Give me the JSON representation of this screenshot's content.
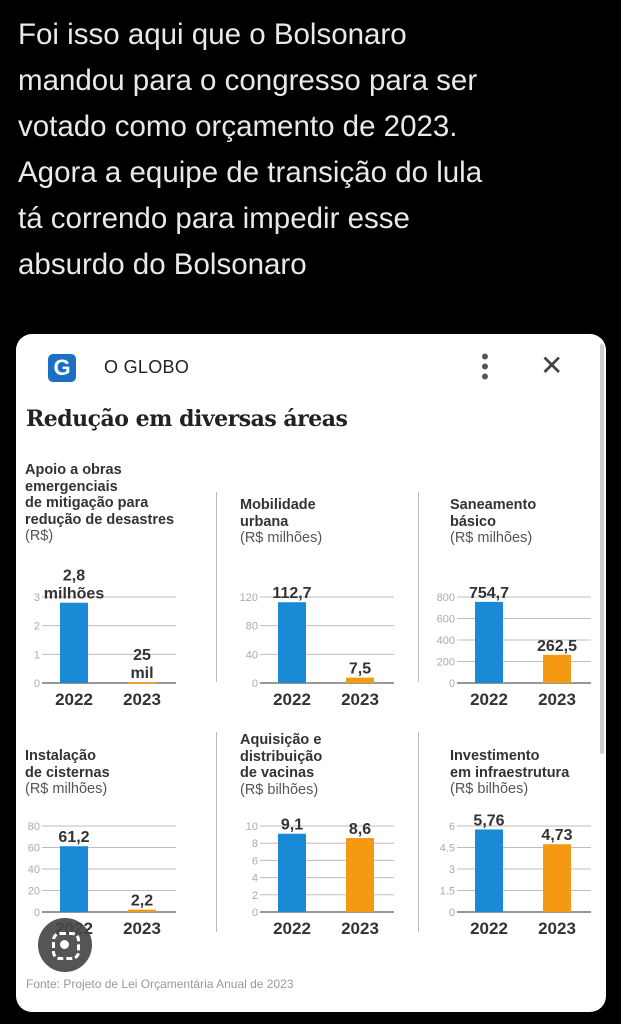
{
  "tweet": {
    "lines": [
      "Foi isso aqui que o Bolsonaro",
      "mandou para o congresso para ser",
      "votado como orçamento de 2023.",
      "Agora a equipe de transição do lula",
      "tá correndo para impedir esse",
      "absurdo do Bolsonaro"
    ]
  },
  "card": {
    "logo_letter": "G",
    "source_name": "O GLOBO",
    "menu_icon": "more-vertical-icon",
    "close_icon": "close-icon",
    "lens_icon": "google-lens-icon"
  },
  "colors": {
    "bar_2022": "#1a8ad6",
    "bar_2023": "#f39a12",
    "grid": "#bdbdbd"
  },
  "chart_data": {
    "title": "Redução em diversas áreas",
    "source": "Fonte: Projeto de Lei Orçamentária Anual de 2023",
    "charts": [
      {
        "type": "bar",
        "title_lines": [
          "Apoio a obras",
          "emergenciais",
          "de mitigação para",
          "redução de desastres"
        ],
        "unit": "(R$)",
        "categories": [
          "2022",
          "2023"
        ],
        "values": [
          2.8,
          0.025
        ],
        "value_labels": [
          [
            "2,8",
            "milhões"
          ],
          [
            "25",
            "mil"
          ]
        ],
        "yticks": [
          "0",
          "1",
          "2",
          "3"
        ],
        "ylim": [
          0,
          3
        ]
      },
      {
        "type": "bar",
        "title_lines": [
          "Mobilidade",
          "urbana"
        ],
        "unit": "(R$ milhões)",
        "categories": [
          "2022",
          "2023"
        ],
        "values": [
          112.7,
          7.5
        ],
        "value_labels": [
          [
            "112,7"
          ],
          [
            "7,5"
          ]
        ],
        "yticks": [
          "0",
          "40",
          "80",
          "120"
        ],
        "ylim": [
          0,
          120
        ]
      },
      {
        "type": "bar",
        "title_lines": [
          "Saneamento",
          "básico"
        ],
        "unit": "(R$ milhões)",
        "categories": [
          "2022",
          "2023"
        ],
        "values": [
          754.7,
          262.5
        ],
        "value_labels": [
          [
            "754,7"
          ],
          [
            "262,5"
          ]
        ],
        "yticks": [
          "0",
          "200",
          "400",
          "600",
          "800"
        ],
        "ylim": [
          0,
          800
        ]
      },
      {
        "type": "bar",
        "title_lines": [
          "Instalação",
          "de cisternas"
        ],
        "unit": "(R$ milhões)",
        "categories": [
          "2022",
          "2023"
        ],
        "values": [
          61.2,
          2.2
        ],
        "value_labels": [
          [
            "61,2"
          ],
          [
            "2,2"
          ]
        ],
        "yticks": [
          "0",
          "20",
          "40",
          "60",
          "80"
        ],
        "ylim": [
          0,
          80
        ]
      },
      {
        "type": "bar",
        "title_lines": [
          "Aquisição e",
          "distribuição",
          "de vacinas"
        ],
        "unit": "(R$ bilhões)",
        "categories": [
          "2022",
          "2023"
        ],
        "values": [
          9.1,
          8.6
        ],
        "value_labels": [
          [
            "9,1"
          ],
          [
            "8,6"
          ]
        ],
        "yticks": [
          "0",
          "2",
          "4",
          "6",
          "8",
          "10"
        ],
        "ylim": [
          0,
          10
        ]
      },
      {
        "type": "bar",
        "title_lines": [
          "Investimento",
          "em infraestrutura"
        ],
        "unit": "(R$ bilhões)",
        "categories": [
          "2022",
          "2023"
        ],
        "values": [
          5.76,
          4.73
        ],
        "value_labels": [
          [
            "5,76"
          ],
          [
            "4,73"
          ]
        ],
        "yticks": [
          "0",
          "1.5",
          "3",
          "4.5",
          "6"
        ],
        "ylim": [
          0,
          6
        ]
      }
    ]
  }
}
